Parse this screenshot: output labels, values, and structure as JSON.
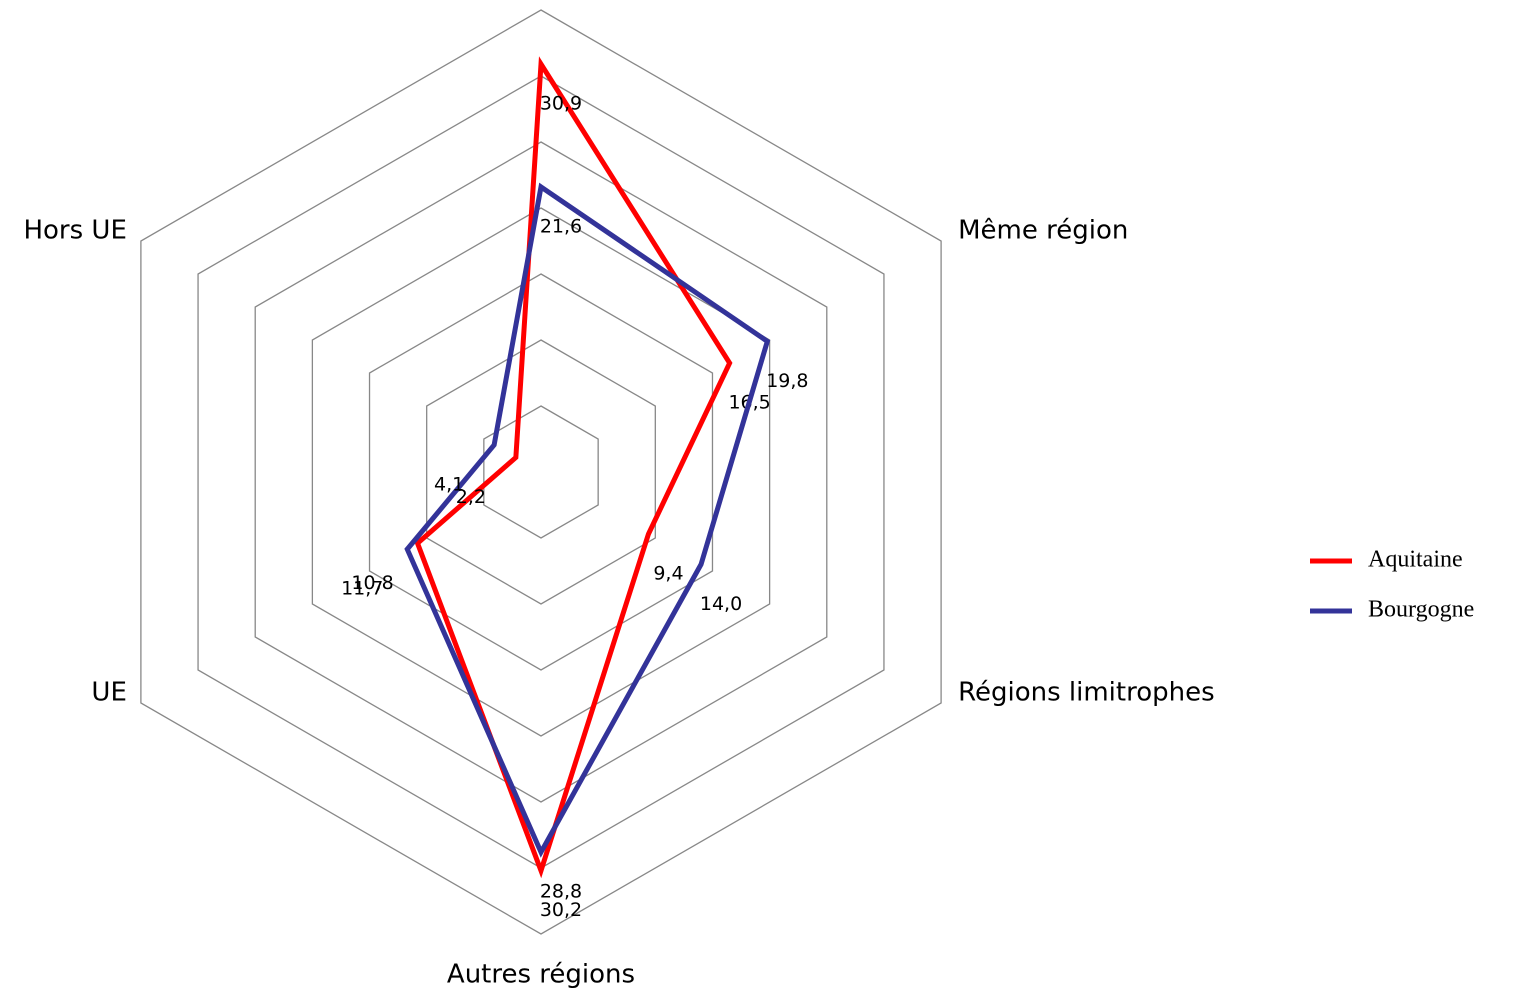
{
  "chart_data": {
    "type": "radar",
    "categories": [
      null,
      "Même région",
      "Régions limitrophes",
      "Autres régions",
      "UE",
      "Hors UE"
    ],
    "series": [
      {
        "name": "Aquitaine",
        "color": "#ff0000",
        "values": [
          30.9,
          16.5,
          9.4,
          30.2,
          10.8,
          2.2
        ],
        "value_labels": [
          "30,9",
          "16,5",
          "9,4",
          "30,2",
          "10,8",
          "2,2"
        ]
      },
      {
        "name": "Bourgogne",
        "color": "#333399",
        "values": [
          21.6,
          19.8,
          14.0,
          28.8,
          11.7,
          4.1
        ],
        "value_labels": [
          "21,6",
          "19,8",
          "14,0",
          "28,8",
          "11,7",
          "4,1"
        ]
      }
    ],
    "rlim": [
      0,
      35
    ],
    "rticks": [
      5,
      10,
      15,
      20,
      25,
      30,
      35
    ],
    "grid": true,
    "legend": "right"
  }
}
